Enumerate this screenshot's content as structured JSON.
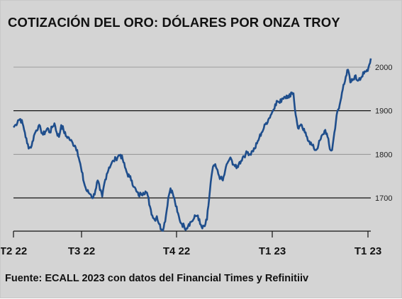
{
  "chart_data": {
    "type": "line",
    "title": "COTIZACIÓN DEL ORO: DÓLARES POR ONZA TROY",
    "source": "Fuente: ECALL 2023 con datos del Financial Times y Refinitiiv",
    "x_tick_labels": [
      "T2 22",
      "T3 22",
      "T4 22",
      "T1 23",
      "T1 23"
    ],
    "y_tick_labels": [
      "1700",
      "1800",
      "1900",
      "2000"
    ],
    "ylim": [
      1612,
      2030
    ],
    "grid": {
      "major": [
        1700,
        1900
      ],
      "minor": [
        1800,
        2000
      ]
    },
    "series": [
      {
        "color": "#1f4e8c",
        "values": [
          1862,
          1868,
          1878,
          1881,
          1871,
          1850,
          1825,
          1815,
          1820,
          1843,
          1855,
          1865,
          1857,
          1845,
          1852,
          1860,
          1850,
          1862,
          1871,
          1850,
          1840,
          1867,
          1856,
          1842,
          1840,
          1832,
          1826,
          1820,
          1810,
          1785,
          1760,
          1735,
          1718,
          1712,
          1708,
          1700,
          1718,
          1740,
          1718,
          1703,
          1735,
          1755,
          1770,
          1778,
          1785,
          1790,
          1796,
          1799,
          1788,
          1770,
          1756,
          1748,
          1740,
          1725,
          1715,
          1705,
          1710,
          1712,
          1715,
          1705,
          1680,
          1660,
          1650,
          1658,
          1640,
          1628,
          1632,
          1660,
          1700,
          1722,
          1710,
          1690,
          1668,
          1650,
          1640,
          1635,
          1630,
          1640,
          1645,
          1650,
          1658,
          1660,
          1640,
          1630,
          1635,
          1650,
          1700,
          1750,
          1775,
          1770,
          1755,
          1745,
          1740,
          1762,
          1780,
          1790,
          1785,
          1775,
          1768,
          1778,
          1785,
          1796,
          1800,
          1805,
          1800,
          1808,
          1813,
          1825,
          1838,
          1850,
          1860,
          1872,
          1880,
          1890,
          1900,
          1915,
          1922,
          1918,
          1928,
          1932,
          1935,
          1930,
          1942,
          1940,
          1890,
          1860,
          1866,
          1860,
          1850,
          1840,
          1830,
          1822,
          1814,
          1810,
          1822,
          1835,
          1846,
          1856,
          1840,
          1812,
          1810,
          1850,
          1890,
          1905,
          1930,
          1960,
          1978,
          1994,
          1965,
          1970,
          1980,
          1970,
          1975,
          1978,
          1985,
          1990,
          2000,
          2020
        ]
      }
    ]
  }
}
